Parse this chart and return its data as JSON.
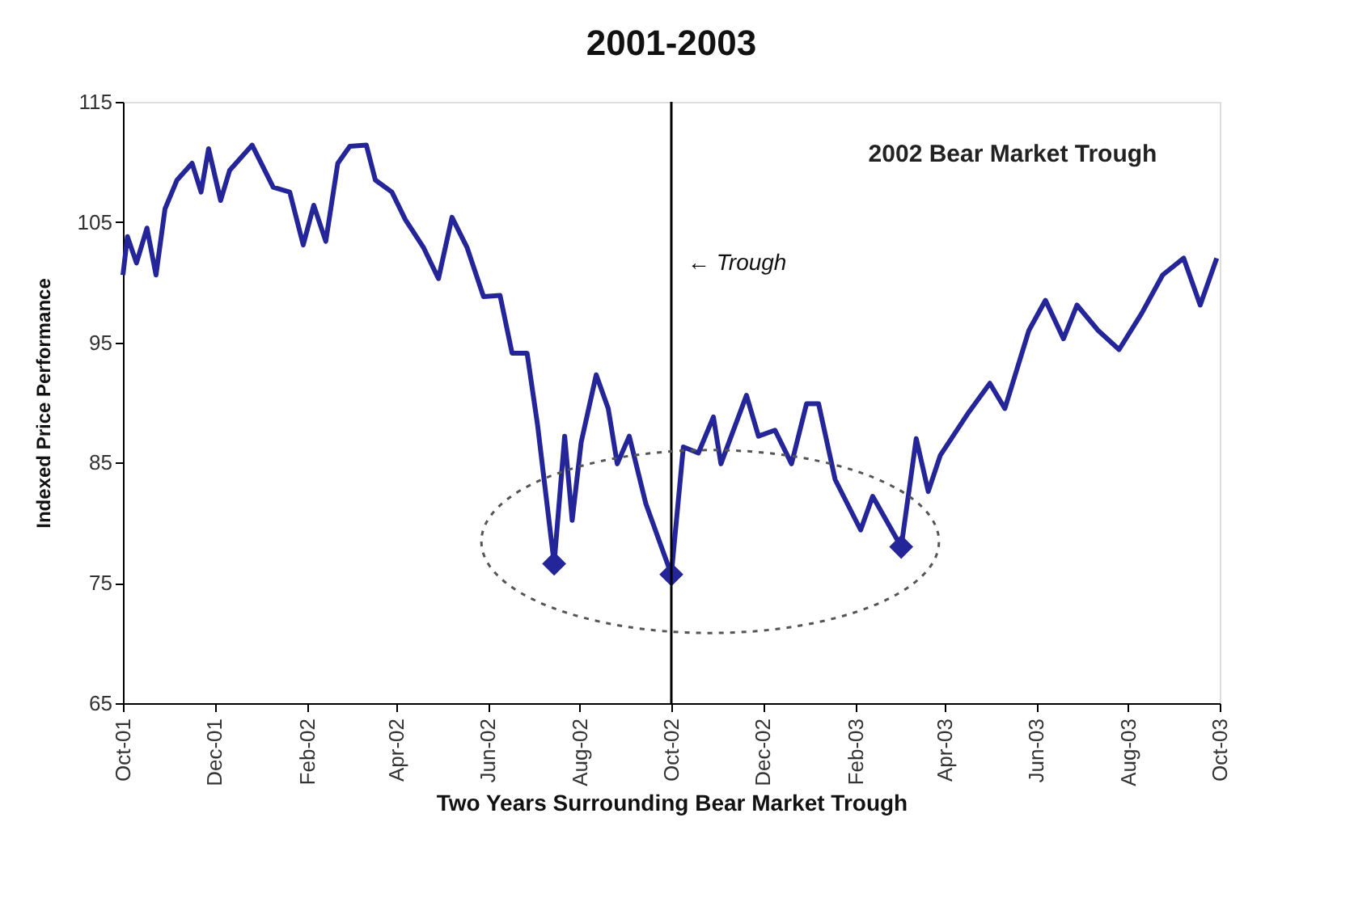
{
  "chart_data": {
    "type": "line",
    "title": "2001-2003",
    "xlabel": "Two Years Surrounding Bear Market Trough",
    "ylabel": "Indexed Price Performance",
    "annotations": [
      "2002 Bear Market Trough"
    ],
    "series": [
      {
        "color": "#25259a",
        "x": [
          "2001-10-01",
          "2001-10-04",
          "2001-10-10",
          "2001-10-17",
          "2001-10-23",
          "2001-10-29",
          "2001-11-06",
          "2001-11-16",
          "2001-11-22",
          "2001-11-27",
          "2001-12-05",
          "2001-12-11",
          "2001-12-26",
          "2002-01-09",
          "2002-01-20",
          "2002-01-29",
          "2002-02-05",
          "2002-02-13",
          "2002-02-21",
          "2002-03-01",
          "2002-03-12",
          "2002-03-18",
          "2002-03-29",
          "2002-04-07",
          "2002-04-19",
          "2002-04-29",
          "2002-05-08",
          "2002-05-18",
          "2002-05-29",
          "2002-06-09",
          "2002-06-17",
          "2002-06-27",
          "2002-07-04",
          "2002-07-15",
          "2002-07-22",
          "2002-07-27",
          "2002-08-02",
          "2002-08-12",
          "2002-08-20",
          "2002-08-26",
          "2002-09-03",
          "2002-09-14",
          "2002-10-01",
          "2002-10-09",
          "2002-10-19",
          "2002-10-29",
          "2002-11-03",
          "2002-11-20",
          "2002-11-28",
          "2002-12-09",
          "2002-12-20",
          "2002-12-30",
          "2003-01-07",
          "2003-01-18",
          "2003-02-04",
          "2003-02-12",
          "2003-03-03",
          "2003-03-13",
          "2003-03-21",
          "2003-03-29",
          "2003-04-17",
          "2003-05-01",
          "2003-05-11",
          "2003-05-27",
          "2003-06-07",
          "2003-06-19",
          "2003-06-28",
          "2003-07-12",
          "2003-07-26",
          "2003-08-10",
          "2003-08-24",
          "2003-09-07",
          "2003-09-18",
          "2003-09-29"
        ],
        "values": [
          100.6,
          103.8,
          101.6,
          104.5,
          100.6,
          106.1,
          108.5,
          109.9,
          107.5,
          111.1,
          106.8,
          109.3,
          111.4,
          107.9,
          107.5,
          103.1,
          106.4,
          103.4,
          109.9,
          111.3,
          111.4,
          108.5,
          107.5,
          105.2,
          102.9,
          100.3,
          105.4,
          102.9,
          98.8,
          98.9,
          94.1,
          94.1,
          88.1,
          76.6,
          87.2,
          80.2,
          86.7,
          92.3,
          89.5,
          84.9,
          87.2,
          81.6,
          75.7,
          86.3,
          85.8,
          88.8,
          84.9,
          90.6,
          87.2,
          87.7,
          84.9,
          89.9,
          89.9,
          83.6,
          79.4,
          82.2,
          78.0,
          87.0,
          82.6,
          85.6,
          89.2,
          91.6,
          89.5,
          96.0,
          98.5,
          95.3,
          98.1,
          96.0,
          94.4,
          97.4,
          100.6,
          102.0,
          98.1,
          102.0
        ]
      },
      {
        "type": "scatter",
        "marker": "diamond",
        "color": "#25259a",
        "x": [
          "2002-07-15",
          "2002-10-01",
          "2003-03-03"
        ],
        "values": [
          76.6,
          75.7,
          78.0
        ]
      }
    ],
    "ref_lines": [
      {
        "axis": "x",
        "value": "2002-10-01",
        "label": "← Trough",
        "color": "#000000"
      }
    ],
    "xlim": [
      "2001-10-01",
      "2003-10-01"
    ],
    "xticks": [
      {
        "value": "2001-10-01",
        "label": "Oct-01"
      },
      {
        "value": "2001-12-01",
        "label": "Dec-01"
      },
      {
        "value": "2002-02-01",
        "label": "Feb-02"
      },
      {
        "value": "2002-04-01",
        "label": "Apr-02"
      },
      {
        "value": "2002-06-01",
        "label": "Jun-02"
      },
      {
        "value": "2002-08-01",
        "label": "Aug-02"
      },
      {
        "value": "2002-10-01",
        "label": "Oct-02"
      },
      {
        "value": "2002-12-01",
        "label": "Dec-02"
      },
      {
        "value": "2003-02-01",
        "label": "Feb-03"
      },
      {
        "value": "2003-04-01",
        "label": "Apr-03"
      },
      {
        "value": "2003-06-01",
        "label": "Jun-03"
      },
      {
        "value": "2003-08-01",
        "label": "Aug-03"
      },
      {
        "value": "2003-10-01",
        "label": "Oct-03"
      }
    ],
    "ylim": [
      65,
      115
    ],
    "yticks": [
      65,
      75,
      85,
      95,
      105,
      115
    ],
    "grid": false
  }
}
